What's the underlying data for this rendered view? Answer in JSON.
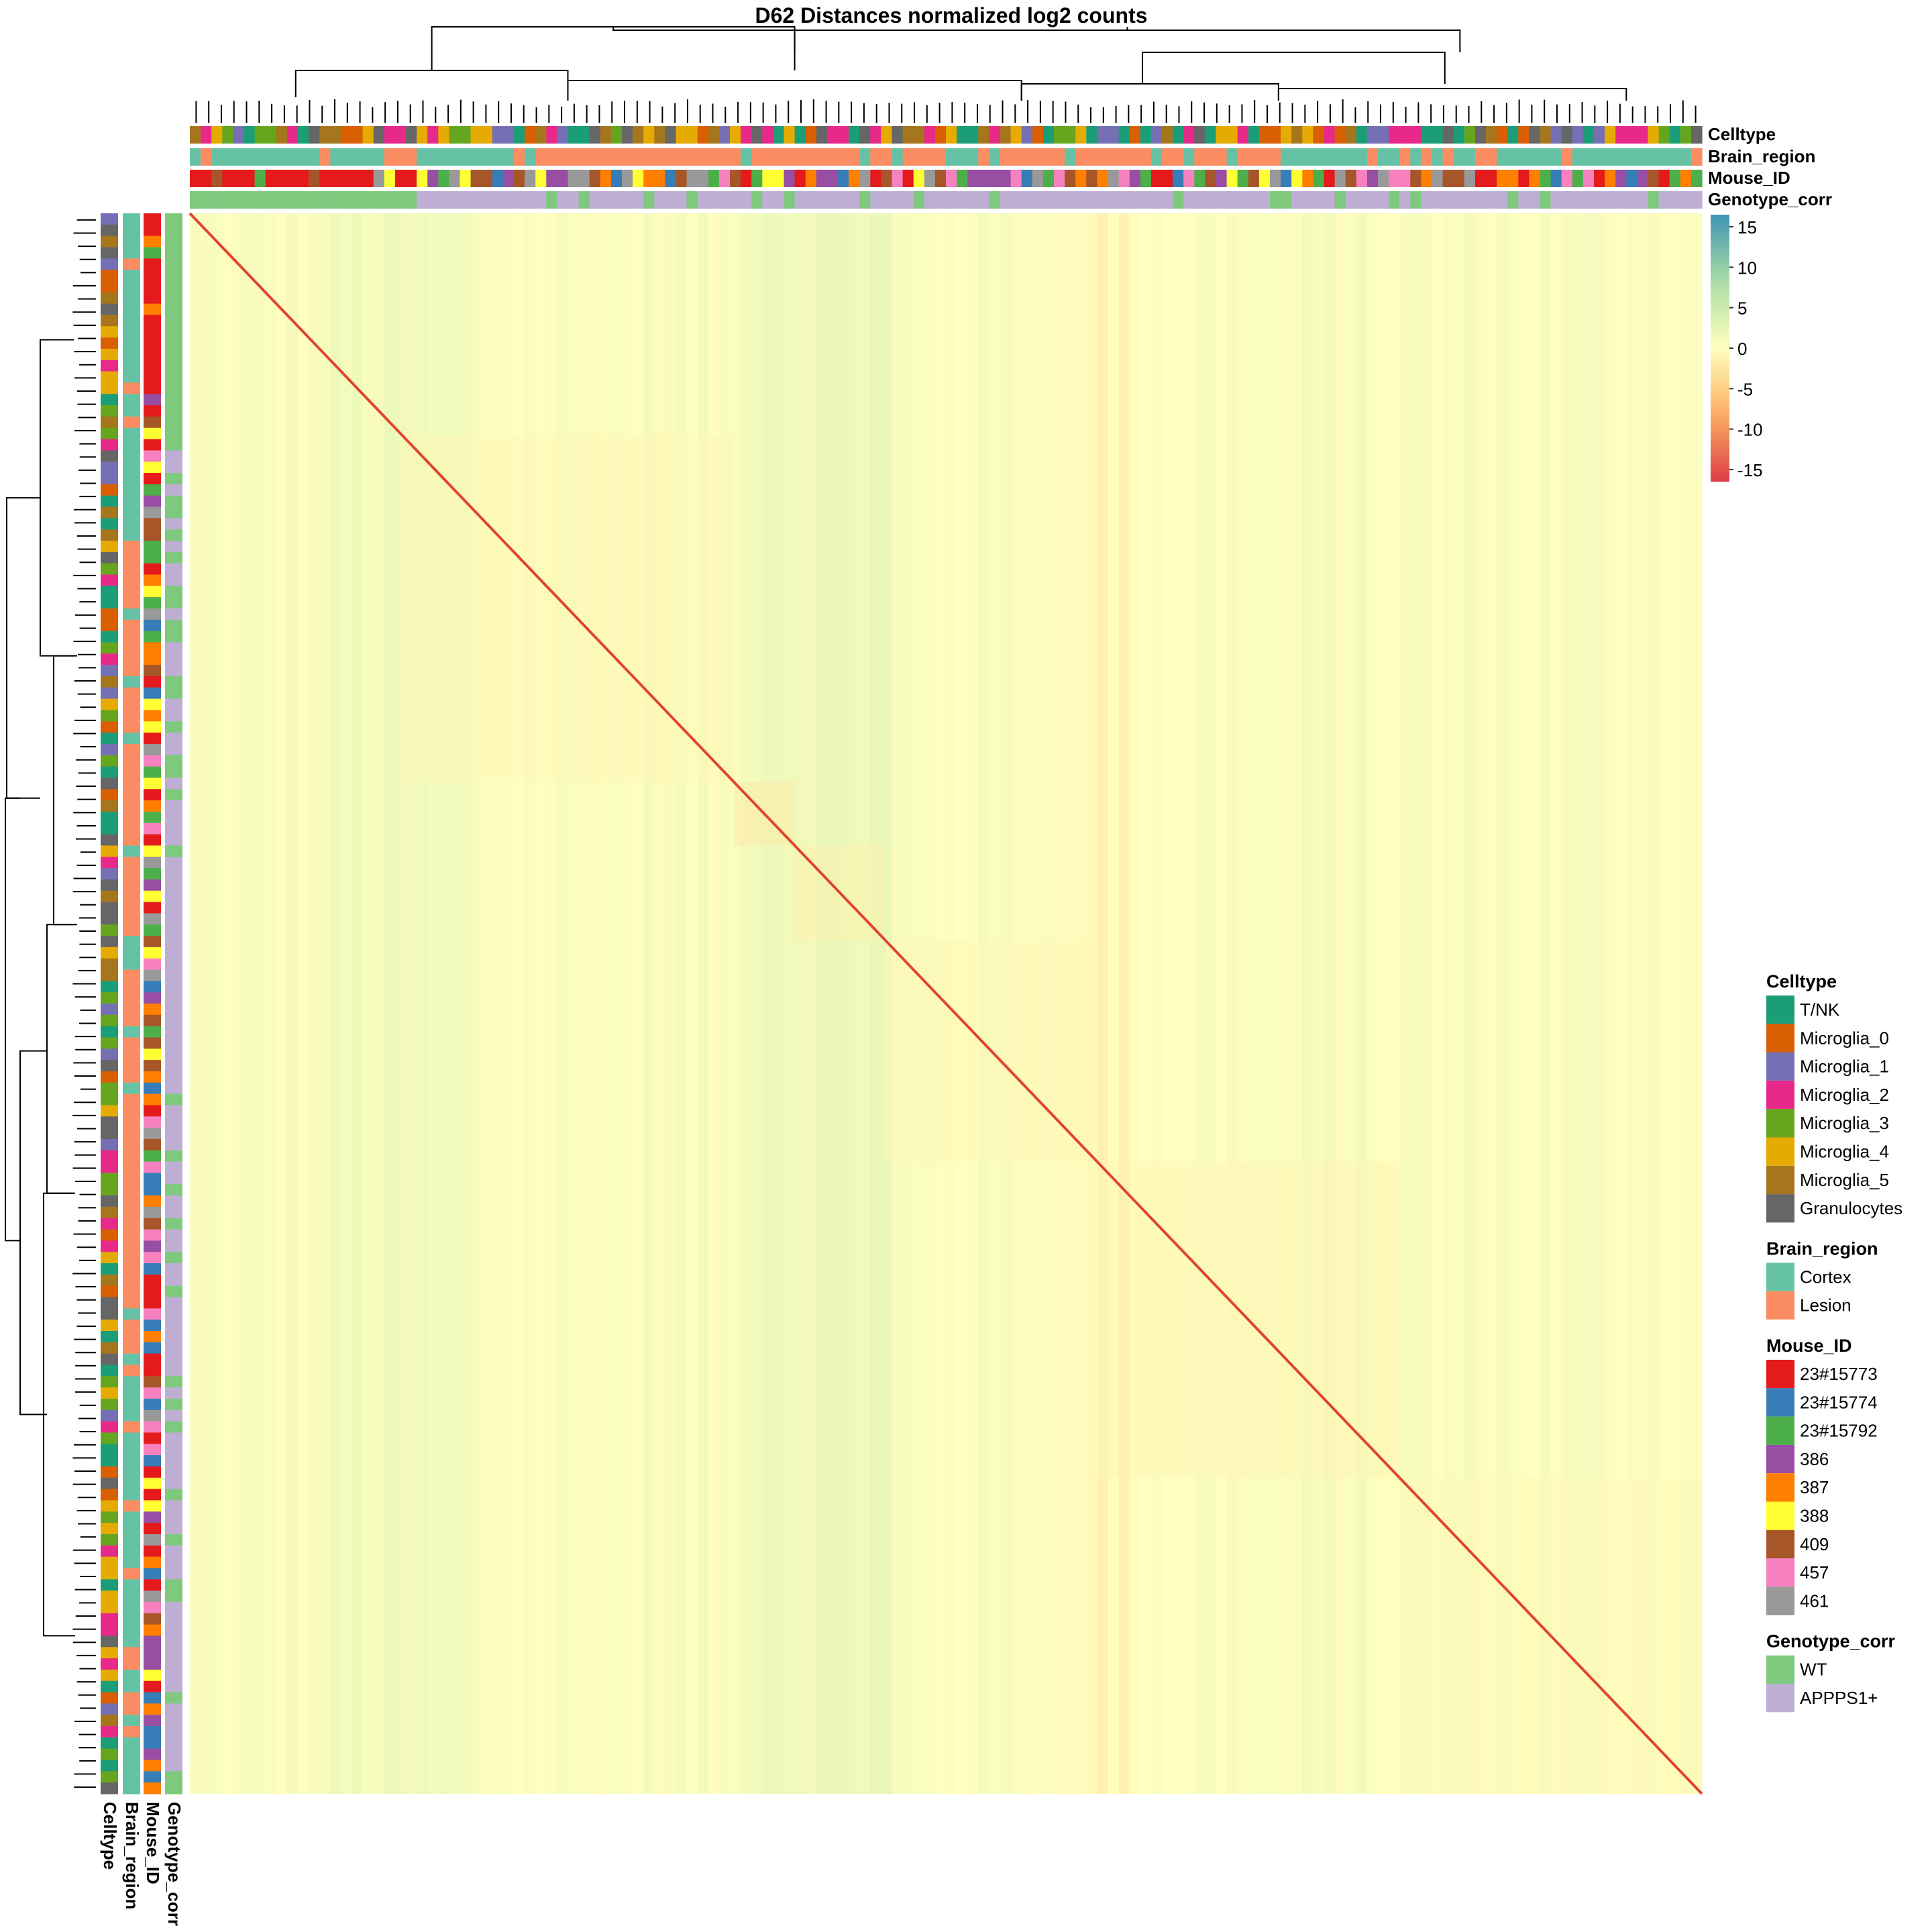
{
  "chart_data": {
    "type": "heatmap",
    "title": "D62 Distances normalized log2 counts",
    "colorbar": {
      "ticks": [
        15,
        10,
        5,
        0,
        -5,
        -10,
        -15
      ],
      "tick_labels": [
        "15",
        "10",
        "5",
        "0",
        "-5",
        "-10",
        "-15"
      ],
      "range": [
        -15,
        15
      ],
      "colors": {
        "high": "#3f95b4",
        "mid": "#ffffbf",
        "low": "#dc3c46"
      }
    },
    "diagonal_value": -15,
    "annotation_tracks": [
      "Celltype",
      "Brain_region",
      "Mouse_ID",
      "Genotype_corr"
    ],
    "dendrogram": {
      "top": true,
      "left": true
    },
    "legend": {
      "placement": "right",
      "groups": [
        {
          "title": "Celltype",
          "entries": [
            {
              "label": "T/NK",
              "color": "#1b9e77"
            },
            {
              "label": "Microglia_0",
              "color": "#d95f02"
            },
            {
              "label": "Microglia_1",
              "color": "#7570b3"
            },
            {
              "label": "Microglia_2",
              "color": "#e7298a"
            },
            {
              "label": "Microglia_3",
              "color": "#66a61e"
            },
            {
              "label": "Microglia_4",
              "color": "#e6ab02"
            },
            {
              "label": "Microglia_5",
              "color": "#a6761d"
            },
            {
              "label": "Granulocytes",
              "color": "#666666"
            }
          ]
        },
        {
          "title": "Brain_region",
          "entries": [
            {
              "label": "Cortex",
              "color": "#66c2a5"
            },
            {
              "label": "Lesion",
              "color": "#fc8d62"
            }
          ]
        },
        {
          "title": "Mouse_ID",
          "entries": [
            {
              "label": "23#15773",
              "color": "#e41a1c"
            },
            {
              "label": "23#15774",
              "color": "#377eb8"
            },
            {
              "label": "23#15792",
              "color": "#4daf4a"
            },
            {
              "label": "386",
              "color": "#984ea3"
            },
            {
              "label": "387",
              "color": "#ff7f00"
            },
            {
              "label": "388",
              "color": "#ffff33"
            },
            {
              "label": "409",
              "color": "#a65628"
            },
            {
              "label": "457",
              "color": "#f781bf"
            },
            {
              "label": "461",
              "color": "#999999"
            }
          ]
        },
        {
          "title": "Genotype_corr",
          "entries": [
            {
              "label": "WT",
              "color": "#7fc97f"
            },
            {
              "label": "APPPS1+",
              "color": "#beaed4"
            }
          ]
        }
      ]
    }
  }
}
